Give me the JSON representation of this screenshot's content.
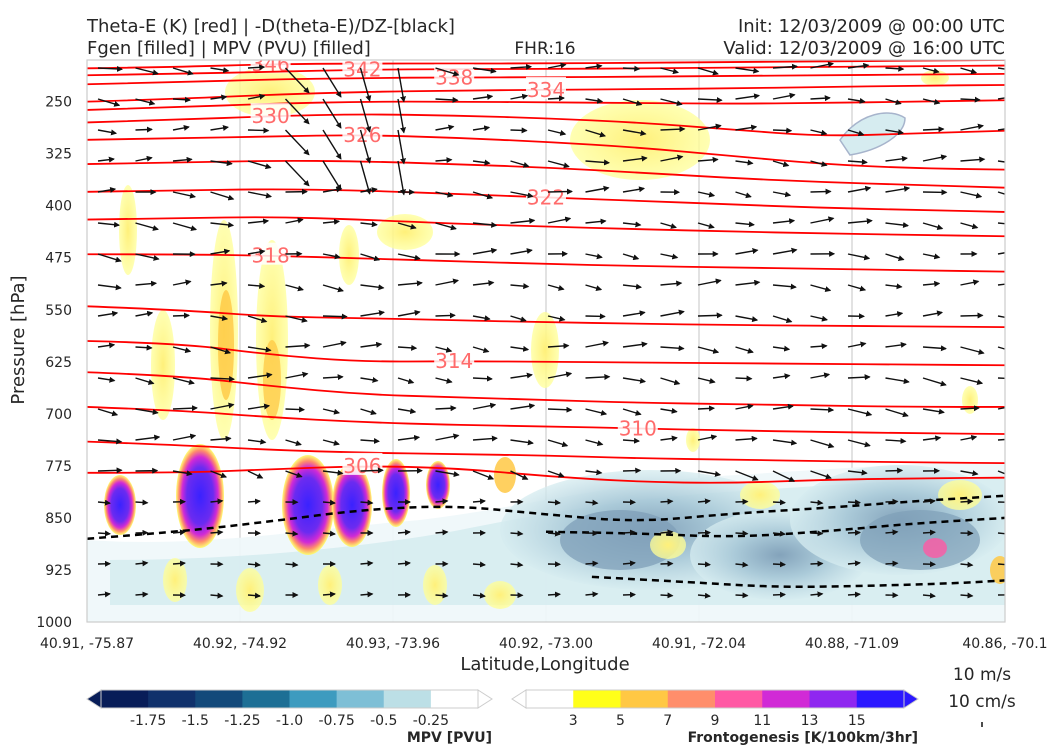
{
  "header": {
    "title_left_1": "Theta-E (K) [red] | -D(theta-E)/DZ-[black]",
    "title_left_2": "Fgen [filled] | MPV (PVU) [filled]",
    "title_center": "FHR:16",
    "title_right_1": "Init: 12/03/2009 @ 00:00 UTC",
    "title_right_2": "Valid: 12/03/2009 @ 16:00 UTC"
  },
  "chart_data": {
    "type": "cross-section",
    "xlabel": "Latitude,Longitude",
    "ylabel": "Pressure [hPa]",
    "x_ticks": [
      "40.91, -75.87",
      "40.92, -74.92",
      "40.93, -73.96",
      "40.92, -73.00",
      "40.91, -72.04",
      "40.88, -71.09",
      "40.86, -70.1"
    ],
    "y_ticks": [
      250,
      325,
      400,
      475,
      550,
      625,
      700,
      775,
      850,
      925,
      1000
    ],
    "ylim": [
      1000,
      190
    ],
    "y_inverted": true,
    "colors": {
      "theta_e": "#ff0000",
      "theta_e_label": "#ff6b6b",
      "dthetae_dz": "#000000",
      "wind_vector": "#111111"
    },
    "theta_e_contours": [
      {
        "label": "346",
        "points": [
          [
            0,
            202
          ],
          [
            10,
            200
          ],
          [
            20,
            196
          ],
          [
            30,
            195
          ],
          [
            40,
            195
          ],
          [
            50,
            195
          ],
          [
            60,
            194
          ],
          [
            70,
            193
          ],
          [
            80,
            192
          ],
          [
            90,
            191
          ],
          [
            100,
            190
          ]
        ]
      },
      {
        "label": "342",
        "points": [
          [
            0,
            212
          ],
          [
            10,
            210
          ],
          [
            20,
            207
          ],
          [
            30,
            204
          ],
          [
            40,
            203
          ],
          [
            50,
            203
          ],
          [
            60,
            202
          ],
          [
            70,
            201
          ],
          [
            80,
            200
          ],
          [
            90,
            199
          ],
          [
            100,
            198
          ]
        ]
      },
      {
        "label": "338",
        "points": [
          [
            0,
            225
          ],
          [
            10,
            222
          ],
          [
            20,
            218
          ],
          [
            30,
            216
          ],
          [
            40,
            215
          ],
          [
            50,
            215
          ],
          [
            60,
            214
          ],
          [
            70,
            213
          ],
          [
            80,
            212
          ],
          [
            90,
            211
          ],
          [
            100,
            210
          ]
        ]
      },
      {
        "label": "334",
        "points": [
          [
            0,
            250
          ],
          [
            10,
            246
          ],
          [
            20,
            240
          ],
          [
            30,
            236
          ],
          [
            40,
            234
          ],
          [
            50,
            233
          ],
          [
            60,
            232
          ],
          [
            70,
            231
          ],
          [
            80,
            229
          ],
          [
            90,
            227
          ],
          [
            100,
            226
          ]
        ]
      },
      {
        "label": "",
        "points": [
          [
            0,
            262
          ],
          [
            10,
            258
          ],
          [
            20,
            253
          ],
          [
            30,
            250
          ],
          [
            40,
            250
          ],
          [
            50,
            251
          ],
          [
            60,
            252
          ],
          [
            70,
            253
          ],
          [
            80,
            252
          ],
          [
            90,
            250
          ],
          [
            100,
            248
          ]
        ]
      },
      {
        "label": "330",
        "points": [
          [
            0,
            280
          ],
          [
            10,
            276
          ],
          [
            20,
            271
          ],
          [
            30,
            268
          ],
          [
            40,
            270
          ],
          [
            50,
            274
          ],
          [
            60,
            280
          ],
          [
            70,
            290
          ],
          [
            80,
            300
          ],
          [
            90,
            296
          ],
          [
            100,
            292
          ]
        ]
      },
      {
        "label": "326",
        "points": [
          [
            0,
            305
          ],
          [
            10,
            303
          ],
          [
            20,
            300
          ],
          [
            30,
            298
          ],
          [
            40,
            302
          ],
          [
            50,
            308
          ],
          [
            60,
            316
          ],
          [
            70,
            328
          ],
          [
            80,
            340
          ],
          [
            90,
            346
          ],
          [
            100,
            348
          ]
        ]
      },
      {
        "label": "",
        "points": [
          [
            0,
            340
          ],
          [
            10,
            338
          ],
          [
            20,
            335
          ],
          [
            30,
            336
          ],
          [
            40,
            340
          ],
          [
            50,
            345
          ],
          [
            60,
            352
          ],
          [
            70,
            360
          ],
          [
            80,
            366
          ],
          [
            90,
            370
          ],
          [
            100,
            374
          ]
        ]
      },
      {
        "label": "322",
        "points": [
          [
            0,
            380
          ],
          [
            10,
            378
          ],
          [
            20,
            376
          ],
          [
            30,
            378
          ],
          [
            40,
            383
          ],
          [
            50,
            388
          ],
          [
            60,
            393
          ],
          [
            70,
            398
          ],
          [
            80,
            403
          ],
          [
            90,
            406
          ],
          [
            100,
            409
          ]
        ]
      },
      {
        "label": "",
        "points": [
          [
            0,
            420
          ],
          [
            10,
            418
          ],
          [
            20,
            416
          ],
          [
            30,
            420
          ],
          [
            40,
            426
          ],
          [
            50,
            430
          ],
          [
            60,
            434
          ],
          [
            70,
            437
          ],
          [
            80,
            440
          ],
          [
            90,
            442
          ],
          [
            100,
            444
          ]
        ]
      },
      {
        "label": "318",
        "points": [
          [
            0,
            470
          ],
          [
            10,
            470
          ],
          [
            20,
            472
          ],
          [
            30,
            476
          ],
          [
            40,
            480
          ],
          [
            50,
            484
          ],
          [
            60,
            487
          ],
          [
            70,
            489
          ],
          [
            80,
            491
          ],
          [
            90,
            493
          ],
          [
            100,
            495
          ]
        ]
      },
      {
        "label": "",
        "points": [
          [
            0,
            545
          ],
          [
            10,
            550
          ],
          [
            20,
            560
          ],
          [
            30,
            562
          ],
          [
            40,
            565
          ],
          [
            50,
            568
          ],
          [
            60,
            570
          ],
          [
            70,
            572
          ],
          [
            80,
            573
          ],
          [
            90,
            574
          ],
          [
            100,
            575
          ]
        ]
      },
      {
        "label": "314",
        "points": [
          [
            0,
            595
          ],
          [
            10,
            598
          ],
          [
            20,
            615
          ],
          [
            30,
            625
          ],
          [
            40,
            624
          ],
          [
            50,
            625
          ],
          [
            60,
            626
          ],
          [
            70,
            627
          ],
          [
            80,
            628
          ],
          [
            90,
            629
          ],
          [
            100,
            630
          ]
        ]
      },
      {
        "label": "",
        "points": [
          [
            0,
            640
          ],
          [
            10,
            645
          ],
          [
            20,
            660
          ],
          [
            30,
            672
          ],
          [
            40,
            676
          ],
          [
            50,
            680
          ],
          [
            60,
            684
          ],
          [
            70,
            686
          ],
          [
            80,
            688
          ],
          [
            90,
            690
          ],
          [
            100,
            690
          ]
        ]
      },
      {
        "label": "310",
        "points": [
          [
            0,
            690
          ],
          [
            10,
            695
          ],
          [
            20,
            705
          ],
          [
            30,
            712
          ],
          [
            40,
            716
          ],
          [
            50,
            718
          ],
          [
            60,
            721
          ],
          [
            70,
            724
          ],
          [
            80,
            726
          ],
          [
            90,
            728
          ],
          [
            100,
            729
          ]
        ]
      },
      {
        "label": "",
        "points": [
          [
            0,
            740
          ],
          [
            10,
            745
          ],
          [
            20,
            752
          ],
          [
            30,
            756
          ],
          [
            40,
            758
          ],
          [
            50,
            760
          ],
          [
            60,
            764
          ],
          [
            70,
            766
          ],
          [
            80,
            768
          ],
          [
            90,
            770
          ],
          [
            100,
            771
          ]
        ]
      },
      {
        "label": "306",
        "points": [
          [
            0,
            785
          ],
          [
            10,
            785
          ],
          [
            20,
            780
          ],
          [
            30,
            775
          ],
          [
            40,
            778
          ],
          [
            50,
            790
          ],
          [
            60,
            798
          ],
          [
            70,
            800
          ],
          [
            80,
            795
          ],
          [
            90,
            793
          ],
          [
            100,
            792
          ]
        ]
      }
    ],
    "dthetae_dz_contours": [
      {
        "points": [
          [
            0,
            880
          ],
          [
            10,
            870
          ],
          [
            20,
            855
          ],
          [
            30,
            838
          ],
          [
            40,
            832
          ],
          [
            50,
            845
          ],
          [
            60,
            856
          ],
          [
            70,
            844
          ],
          [
            80,
            836
          ],
          [
            90,
            826
          ],
          [
            100,
            818
          ]
        ]
      },
      {
        "points": [
          [
            50,
            870
          ],
          [
            60,
            872
          ],
          [
            70,
            878
          ],
          [
            80,
            870
          ],
          [
            90,
            858
          ],
          [
            100,
            850
          ]
        ]
      },
      {
        "points": [
          [
            55,
            935
          ],
          [
            65,
            942
          ],
          [
            75,
            950
          ],
          [
            85,
            948
          ],
          [
            95,
            944
          ],
          [
            100,
            940
          ]
        ]
      }
    ],
    "colorbar_mpv": {
      "label": "MPV [PVU]",
      "ticks": [
        "-1.75",
        "-1.5",
        "-1.25",
        "-1.0",
        "-0.75",
        "-0.5",
        "-0.25"
      ],
      "colors": [
        "#081d58",
        "#10316b",
        "#13497a",
        "#1d6f95",
        "#3d9bbf",
        "#7ebfd6",
        "#bcdfe6",
        "#ffffff"
      ]
    },
    "colorbar_fgen": {
      "label": "Frontogenesis [K/100km/3hr]",
      "ticks": [
        "3",
        "5",
        "7",
        "9",
        "11",
        "13",
        "15"
      ],
      "colors": [
        "#ffffff",
        "#ffff19",
        "#ffc844",
        "#ff8e6b",
        "#ff59a4",
        "#d12ad6",
        "#8f27f0",
        "#2b18ff"
      ]
    },
    "vector_reference": {
      "label_1": "10 m/s",
      "label_2": "10 cm/s"
    }
  }
}
